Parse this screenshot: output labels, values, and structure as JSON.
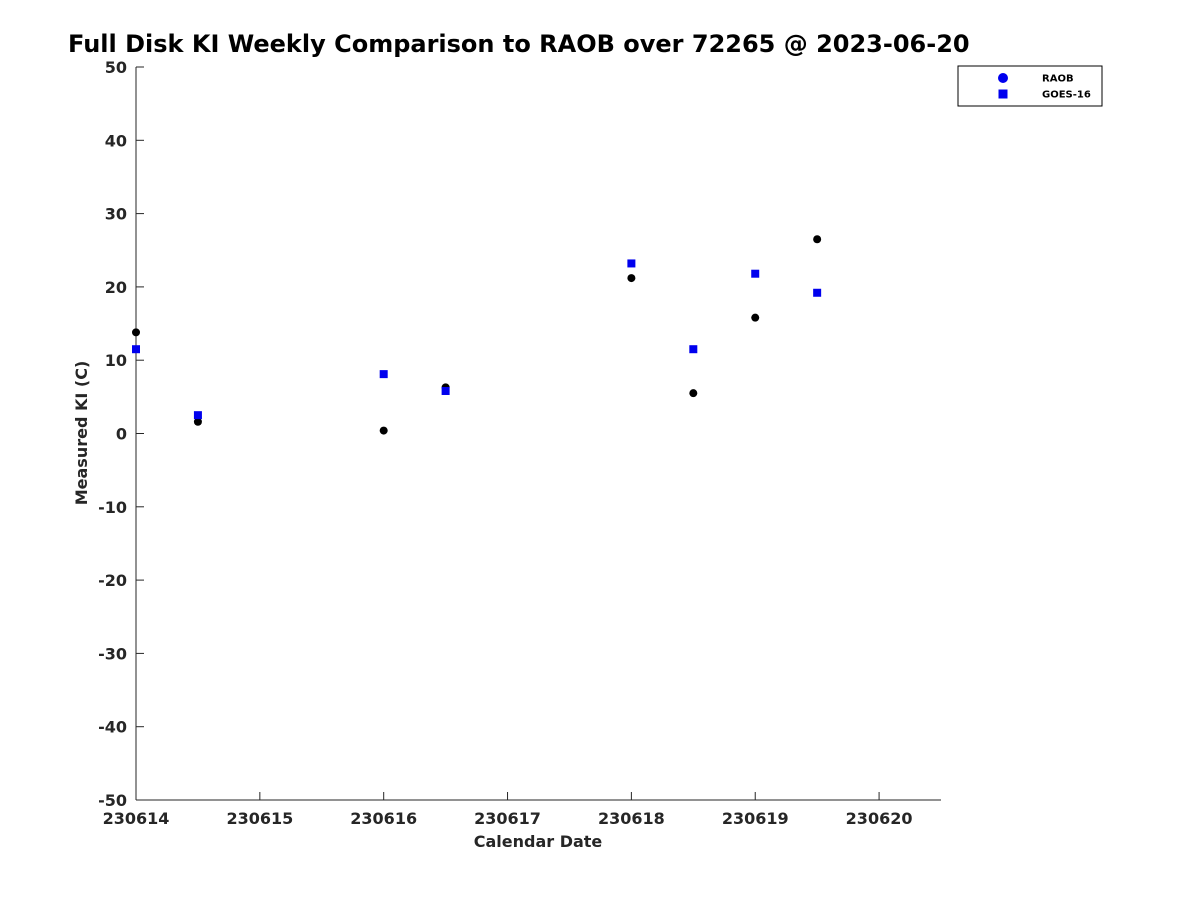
{
  "chart_data": {
    "type": "scatter",
    "title": "Full Disk KI Weekly Comparison to RAOB over 72265 @ 2023-06-20",
    "xlabel": "Calendar Date",
    "ylabel": "Measured KI (C)",
    "xlim": [
      0,
      6.5
    ],
    "ylim": [
      -50,
      50
    ],
    "x_ticks": [
      {
        "pos": 0,
        "label": "230614"
      },
      {
        "pos": 1,
        "label": "230615"
      },
      {
        "pos": 2,
        "label": "230616"
      },
      {
        "pos": 3,
        "label": "230617"
      },
      {
        "pos": 4,
        "label": "230618"
      },
      {
        "pos": 5,
        "label": "230619"
      },
      {
        "pos": 6,
        "label": "230620"
      }
    ],
    "y_ticks": [
      50,
      40,
      30,
      20,
      10,
      0,
      -10,
      -20,
      -30,
      -40,
      -50
    ],
    "grid": false,
    "legend_position": "top-right",
    "series": [
      {
        "name": "RAOB",
        "marker": "circle",
        "color": "#000000",
        "legend_color": "#0000ee",
        "points": [
          [
            0,
            13.8
          ],
          [
            0.5,
            1.6
          ],
          [
            2,
            0.4
          ],
          [
            2.5,
            6.3
          ],
          [
            4,
            21.2
          ],
          [
            4.5,
            5.5
          ],
          [
            5,
            15.8
          ],
          [
            5.5,
            26.5
          ]
        ]
      },
      {
        "name": "GOES-16",
        "marker": "square",
        "color": "#0000ee",
        "legend_color": "#0000ee",
        "points": [
          [
            0,
            11.5
          ],
          [
            0.5,
            2.5
          ],
          [
            2,
            8.1
          ],
          [
            2.5,
            5.8
          ],
          [
            4,
            23.2
          ],
          [
            4.5,
            11.5
          ],
          [
            5,
            21.8
          ],
          [
            5.5,
            19.2
          ]
        ]
      }
    ]
  }
}
